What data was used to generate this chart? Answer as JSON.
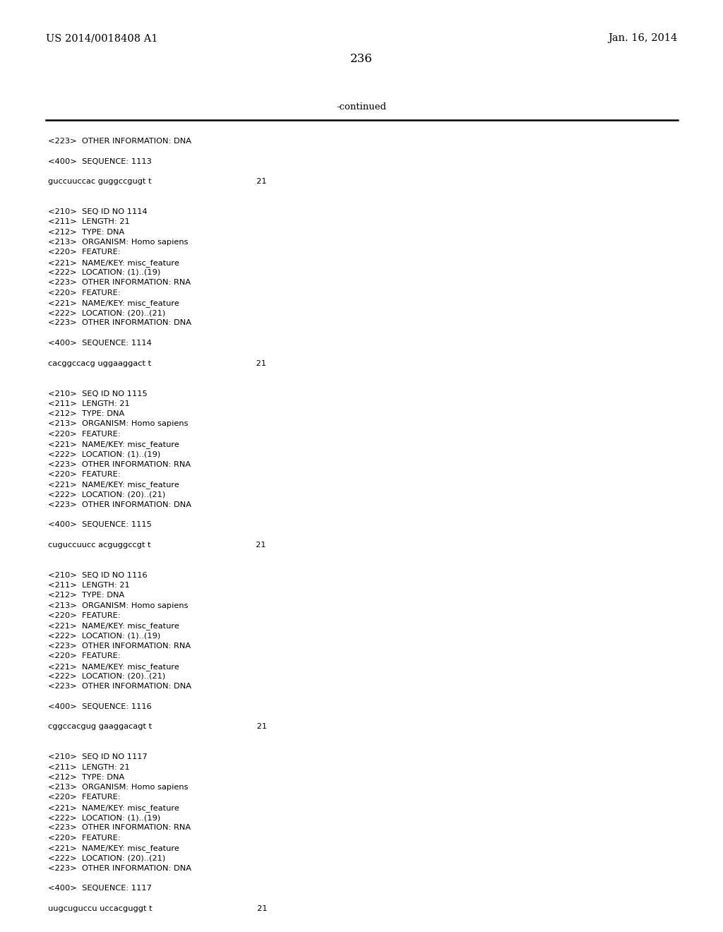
{
  "background_color": "#ffffff",
  "page_number": "236",
  "header_left": "US 2014/0018408 A1",
  "header_right": "Jan. 16, 2014",
  "continued_label": "-continued",
  "text_color": "#000000",
  "mono_font": "Courier New",
  "serif_font": "DejaVu Serif",
  "content_lines": [
    "<223>  OTHER INFORMATION: DNA",
    "",
    "<400>  SEQUENCE: 1113",
    "",
    "guccuuccac guggccgugt t                                         21",
    "",
    "",
    "<210>  SEQ ID NO 1114",
    "<211>  LENGTH: 21",
    "<212>  TYPE: DNA",
    "<213>  ORGANISM: Homo sapiens",
    "<220>  FEATURE:",
    "<221>  NAME/KEY: misc_feature",
    "<222>  LOCATION: (1)..(19)",
    "<223>  OTHER INFORMATION: RNA",
    "<220>  FEATURE:",
    "<221>  NAME/KEY: misc_feature",
    "<222>  LOCATION: (20)..(21)",
    "<223>  OTHER INFORMATION: DNA",
    "",
    "<400>  SEQUENCE: 1114",
    "",
    "cacggccacg uggaaggact t                                         21",
    "",
    "",
    "<210>  SEQ ID NO 1115",
    "<211>  LENGTH: 21",
    "<212>  TYPE: DNA",
    "<213>  ORGANISM: Homo sapiens",
    "<220>  FEATURE:",
    "<221>  NAME/KEY: misc_feature",
    "<222>  LOCATION: (1)..(19)",
    "<223>  OTHER INFORMATION: RNA",
    "<220>  FEATURE:",
    "<221>  NAME/KEY: misc_feature",
    "<222>  LOCATION: (20)..(21)",
    "<223>  OTHER INFORMATION: DNA",
    "",
    "<400>  SEQUENCE: 1115",
    "",
    "cuguccuucc acguggccgt t                                         21",
    "",
    "",
    "<210>  SEQ ID NO 1116",
    "<211>  LENGTH: 21",
    "<212>  TYPE: DNA",
    "<213>  ORGANISM: Homo sapiens",
    "<220>  FEATURE:",
    "<221>  NAME/KEY: misc_feature",
    "<222>  LOCATION: (1)..(19)",
    "<223>  OTHER INFORMATION: RNA",
    "<220>  FEATURE:",
    "<221>  NAME/KEY: misc_feature",
    "<222>  LOCATION: (20)..(21)",
    "<223>  OTHER INFORMATION: DNA",
    "",
    "<400>  SEQUENCE: 1116",
    "",
    "cggccacgug gaaggacagt t                                         21",
    "",
    "",
    "<210>  SEQ ID NO 1117",
    "<211>  LENGTH: 21",
    "<212>  TYPE: DNA",
    "<213>  ORGANISM: Homo sapiens",
    "<220>  FEATURE:",
    "<221>  NAME/KEY: misc_feature",
    "<222>  LOCATION: (1)..(19)",
    "<223>  OTHER INFORMATION: RNA",
    "<220>  FEATURE:",
    "<221>  NAME/KEY: misc_feature",
    "<222>  LOCATION: (20)..(21)",
    "<223>  OTHER INFORMATION: DNA",
    "",
    "<400>  SEQUENCE: 1117",
    "",
    "uugcuguccu uccacguggt t                                         21"
  ]
}
